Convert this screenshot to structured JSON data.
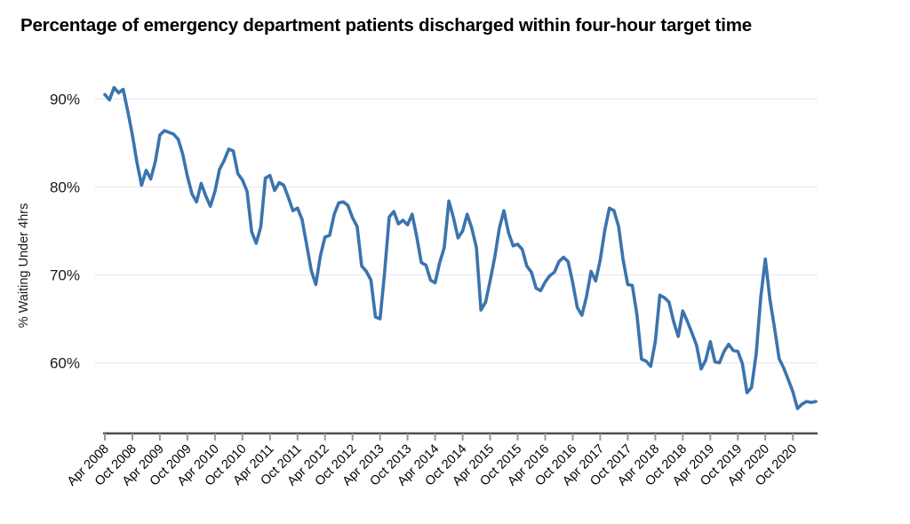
{
  "page": {
    "background": "#ffffff"
  },
  "chart_data": {
    "type": "line",
    "title": "Percentage of emergency department patients discharged within four-hour target time",
    "ylabel": "% Waiting Under 4hrs",
    "xlabel": "",
    "grid": "horizontal",
    "legend": "none",
    "ylim": [
      53,
      93
    ],
    "y_ticks": [
      {
        "value": 90,
        "label": "90%"
      },
      {
        "value": 80,
        "label": "80%"
      },
      {
        "value": 70,
        "label": "70%"
      },
      {
        "value": 60,
        "label": "60%"
      }
    ],
    "x_tick_labels": [
      "Apr 2008",
      "Oct 2008",
      "Apr 2009",
      "Oct 2009",
      "Apr 2010",
      "Oct 2010",
      "Apr 2011",
      "Oct 2011",
      "Apr 2012",
      "Oct 2012",
      "Apr 2013",
      "Oct 2013",
      "Apr 2014",
      "Oct 2014",
      "Apr 2015",
      "Oct 2015",
      "Apr 2016",
      "Oct 2016",
      "Apr 2017",
      "Oct 2017",
      "Apr 2018",
      "Oct 2018",
      "Apr 2019",
      "Oct 2019",
      "Apr 2020",
      "Oct 2020"
    ],
    "colors": {
      "line": "#3b74ad",
      "grid": "#e9e9f2",
      "axis": "#4d4d4d",
      "tick": "#9a9a9a",
      "text": "#000000"
    },
    "series": [
      {
        "name": "% waiting under 4hrs",
        "interval": "monthly",
        "start": "Apr 2008",
        "values": [
          90.5,
          89.9,
          91.3,
          90.7,
          91.1,
          88.6,
          85.9,
          82.8,
          80.2,
          81.9,
          80.9,
          82.9,
          85.9,
          86.4,
          86.2,
          86.0,
          85.4,
          83.7,
          81.2,
          79.2,
          78.3,
          80.4,
          79.0,
          77.8,
          79.5,
          82.0,
          83.0,
          84.3,
          84.1,
          81.5,
          80.8,
          79.5,
          74.9,
          73.6,
          75.5,
          81.0,
          81.3,
          79.6,
          80.5,
          80.2,
          78.8,
          77.3,
          77.6,
          76.3,
          73.4,
          70.5,
          68.9,
          72.2,
          74.3,
          74.5,
          76.9,
          78.2,
          78.3,
          77.9,
          76.5,
          75.5,
          71.0,
          70.4,
          69.4,
          65.2,
          65.0,
          70.3,
          76.6,
          77.2,
          75.8,
          76.2,
          75.7,
          76.9,
          74.3,
          71.4,
          71.1,
          69.4,
          69.1,
          71.4,
          73.1,
          78.4,
          76.5,
          74.2,
          75.0,
          76.9,
          75.3,
          73.1,
          66.0,
          66.9,
          69.3,
          72.0,
          75.3,
          77.3,
          74.8,
          73.3,
          73.5,
          72.9,
          71.0,
          70.3,
          68.5,
          68.2,
          69.2,
          69.9,
          70.3,
          71.5,
          72.0,
          71.5,
          69.1,
          66.3,
          65.4,
          67.5,
          70.4,
          69.3,
          71.7,
          75.1,
          77.6,
          77.3,
          75.5,
          71.7,
          68.9,
          68.8,
          65.5,
          60.4,
          60.2,
          59.6,
          62.4,
          67.7,
          67.4,
          66.9,
          64.7,
          63.0,
          65.9,
          64.7,
          63.4,
          62.0,
          59.3,
          60.3,
          62.4,
          60.1,
          60.0,
          61.3,
          62.1,
          61.4,
          61.3,
          59.9,
          56.6,
          57.2,
          61.0,
          67.5,
          71.8,
          67.2,
          64.0,
          60.5,
          59.4,
          58.1,
          56.7,
          54.8,
          55.3,
          55.6,
          55.5,
          55.6
        ]
      }
    ]
  }
}
